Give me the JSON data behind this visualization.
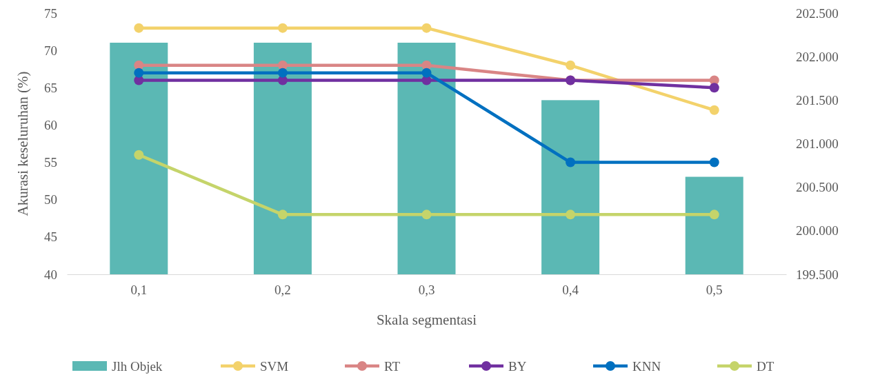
{
  "chart_data": {
    "type": "bar",
    "xlabel": "Skala segmentasi",
    "ylabel": "Akurasi keseluruhan (%)",
    "categories": [
      "0,1",
      "0,2",
      "0,3",
      "0,4",
      "0,5"
    ],
    "series": [
      {
        "name": "Jlh Objek",
        "axis": "y2",
        "color": "#5bb8b4",
        "values": [
          202160,
          202160,
          202160,
          201500,
          200620
        ]
      },
      {
        "name": "SVM",
        "type": "line",
        "color": "#f3d26b",
        "values": [
          73,
          73,
          73,
          68,
          62
        ]
      },
      {
        "name": "RT",
        "type": "line",
        "color": "#d98585",
        "values": [
          68,
          68,
          68,
          66,
          66
        ]
      },
      {
        "name": "BY",
        "type": "line",
        "color": "#7030a0",
        "values": [
          66,
          66,
          66,
          66,
          65
        ]
      },
      {
        "name": "KNN",
        "type": "line",
        "color": "#0070c0",
        "values": [
          67,
          67,
          67,
          55,
          55
        ]
      },
      {
        "name": "DT",
        "type": "line",
        "color": "#c5d46a",
        "values": [
          56,
          48,
          48,
          48,
          48
        ]
      }
    ],
    "ylim": [
      40,
      75
    ],
    "yticks": [
      40,
      45,
      50,
      55,
      60,
      65,
      70,
      75
    ],
    "y2lim": [
      199500,
      202500
    ],
    "y2ticks": [
      {
        "value": 199500,
        "label": "199.500"
      },
      {
        "value": 200000,
        "label": "200.000"
      },
      {
        "value": 200500,
        "label": "200.500"
      },
      {
        "value": 201000,
        "label": "201.000"
      },
      {
        "value": 201500,
        "label": "201.500"
      },
      {
        "value": 202000,
        "label": "202.000"
      },
      {
        "value": 202500,
        "label": "202.500"
      }
    ],
    "grid": false,
    "legend": "bottom",
    "marker": "circle",
    "line_style": "solid"
  }
}
